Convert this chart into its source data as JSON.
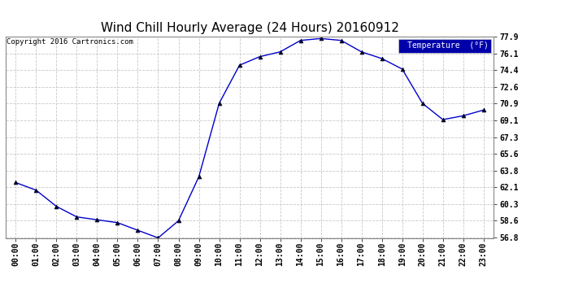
{
  "title": "Wind Chill Hourly Average (24 Hours) 20160912",
  "copyright": "Copyright 2016 Cartronics.com",
  "legend_label": "Temperature  (°F)",
  "x_labels": [
    "00:00",
    "01:00",
    "02:00",
    "03:00",
    "04:00",
    "05:00",
    "06:00",
    "07:00",
    "08:00",
    "09:00",
    "10:00",
    "11:00",
    "12:00",
    "13:00",
    "14:00",
    "15:00",
    "16:00",
    "17:00",
    "18:00",
    "19:00",
    "20:00",
    "21:00",
    "22:00",
    "23:00"
  ],
  "y_values": [
    62.6,
    61.8,
    60.1,
    59.0,
    58.7,
    58.4,
    57.6,
    56.8,
    58.6,
    63.2,
    70.9,
    74.9,
    75.8,
    76.3,
    77.5,
    77.7,
    77.5,
    76.3,
    75.6,
    74.5,
    70.9,
    69.2,
    69.6,
    70.2
  ],
  "ylim_min": 56.8,
  "ylim_max": 77.9,
  "yticks": [
    56.8,
    58.6,
    60.3,
    62.1,
    63.8,
    65.6,
    67.3,
    69.1,
    70.9,
    72.6,
    74.4,
    76.1,
    77.9
  ],
  "line_color": "#0000cc",
  "marker": "^",
  "marker_color": "#000020",
  "bg_color": "#ffffff",
  "plot_bg_color": "#ffffff",
  "grid_color": "#bbbbbb",
  "title_fontsize": 11,
  "copyright_fontsize": 6.5,
  "tick_fontsize": 7,
  "legend_bg_color": "#0000aa",
  "legend_text_color": "#ffffff"
}
